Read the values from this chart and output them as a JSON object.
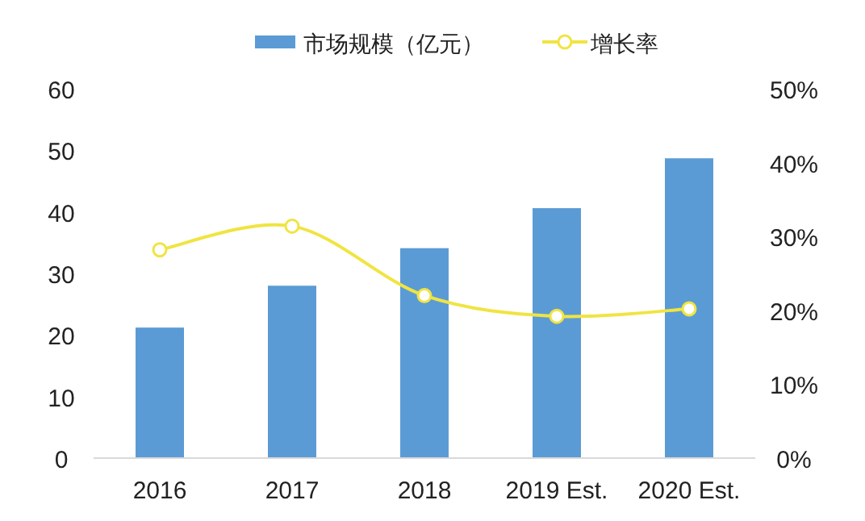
{
  "chart_data": {
    "type": "bar",
    "categories": [
      "2016",
      "2017",
      "2018",
      "2019 Est.",
      "2020 Est."
    ],
    "series": [
      {
        "name": "市场规模（亿元）",
        "color": "#5b9bd5",
        "values": [
          21.2,
          28,
          34.1,
          40.6,
          48.7
        ]
      },
      {
        "name": "增长率",
        "type": "line",
        "axis": "y2",
        "color": "#f0e442",
        "marker": "circle",
        "values": [
          28.2,
          31.4,
          22,
          19.2,
          20.2
        ]
      }
    ],
    "ylim": [
      0,
      60
    ],
    "yticks": [
      0,
      10,
      20,
      30,
      40,
      50,
      60
    ],
    "y2lim": [
      0,
      50
    ],
    "y2ticks": [
      {
        "value": 0,
        "label": "0%"
      },
      {
        "value": 10,
        "label": "10%"
      },
      {
        "value": 20,
        "label": "20%"
      },
      {
        "value": 30,
        "label": "30%"
      },
      {
        "value": 40,
        "label": "40%"
      },
      {
        "value": 50,
        "label": "50%"
      }
    ],
    "legend": "top",
    "grid": false
  }
}
